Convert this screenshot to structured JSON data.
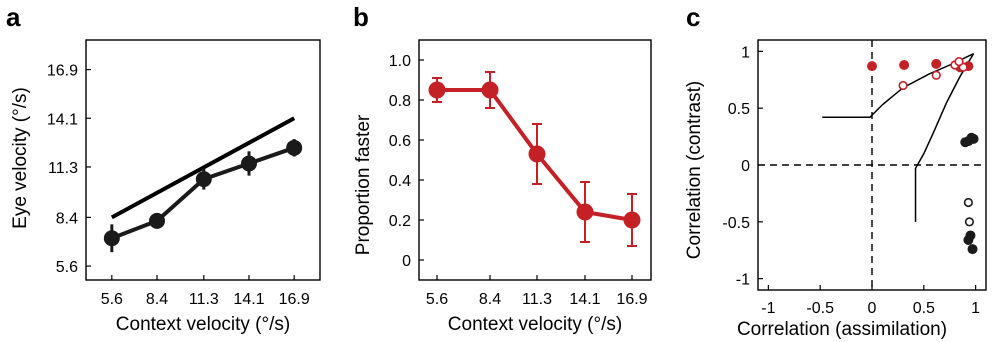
{
  "chart_data": [
    {
      "panel_label": "a",
      "type": "line",
      "xlabel": "Context velocity (°/s)",
      "ylabel": "Eye velocity (°/s)",
      "categories": [
        "5.6",
        "8.4",
        "11.3",
        "14.1",
        "16.9"
      ],
      "yticks": [
        "5.6",
        "8.4",
        "11.3",
        "14.1",
        "16.9"
      ],
      "xlim": [
        4.0,
        18.5
      ],
      "ylim": [
        4.8,
        18.6
      ],
      "series": [
        {
          "values": [
            7.2,
            8.2,
            10.6,
            11.5,
            12.4
          ],
          "errors": [
            0.8,
            0.4,
            0.6,
            0.7,
            0.5
          ],
          "color": "#1a1a1a",
          "style": "markers-line"
        },
        {
          "values": [
            8.4,
            14.1
          ],
          "x": [
            5.6,
            16.9
          ],
          "color": "#000000",
          "style": "line"
        }
      ]
    },
    {
      "panel_label": "b",
      "type": "line",
      "xlabel": "Context velocity (°/s)",
      "ylabel": "Proportion faster",
      "categories": [
        "5.6",
        "8.4",
        "11.3",
        "14.1",
        "16.9"
      ],
      "yticks": [
        "0",
        "0.2",
        "0.4",
        "0.6",
        "0.8",
        "1.0"
      ],
      "ylim": [
        -0.1,
        1.1
      ],
      "series": [
        {
          "values": [
            0.85,
            0.85,
            0.53,
            0.24,
            0.2
          ],
          "errors": [
            0.06,
            0.09,
            0.15,
            0.15,
            0.13
          ],
          "color": "#c42126",
          "style": "markers-line"
        }
      ]
    },
    {
      "panel_label": "c",
      "type": "scatter",
      "xlabel": "Correlation (assimilation)",
      "ylabel": "Correlation (contrast)",
      "xticks": [
        "-1",
        "-0.5",
        "0",
        "0.5",
        "1"
      ],
      "yticks": [
        "-1",
        "-0.5",
        "0",
        "0.5",
        "1"
      ],
      "xlim": [
        -1.1,
        1.1
      ],
      "ylim": [
        -1.1,
        1.1
      ],
      "series": [
        {
          "color": "#c42126",
          "fill": "filled",
          "points": [
            [
              0.0,
              0.87
            ],
            [
              0.31,
              0.88
            ],
            [
              0.62,
              0.89
            ],
            [
              0.85,
              0.86
            ],
            [
              0.93,
              0.87
            ]
          ]
        },
        {
          "color": "#c42126",
          "fill": "open",
          "points": [
            [
              0.3,
              0.7
            ],
            [
              0.62,
              0.79
            ],
            [
              0.8,
              0.88
            ],
            [
              0.88,
              0.86
            ],
            [
              0.84,
              0.91
            ]
          ]
        },
        {
          "color": "#1a1a1a",
          "fill": "filled",
          "points": [
            [
              0.9,
              0.2
            ],
            [
              0.93,
              0.21
            ],
            [
              0.96,
              0.24
            ],
            [
              0.98,
              0.23
            ],
            [
              0.95,
              -0.62
            ],
            [
              0.97,
              -0.74
            ],
            [
              0.93,
              -0.66
            ]
          ]
        },
        {
          "color": "#1a1a1a",
          "fill": "open",
          "points": [
            [
              0.93,
              -0.33
            ],
            [
              0.94,
              -0.5
            ]
          ]
        }
      ],
      "curves": [
        [
          [
            -0.48,
            0.42
          ],
          [
            -0.02,
            0.42
          ],
          [
            0.1,
            0.53
          ],
          [
            0.3,
            0.68
          ],
          [
            0.55,
            0.8
          ],
          [
            0.75,
            0.88
          ],
          [
            0.98,
            0.98
          ]
        ],
        [
          [
            0.42,
            -0.5
          ],
          [
            0.42,
            -0.03
          ],
          [
            0.5,
            0.1
          ],
          [
            0.6,
            0.3
          ],
          [
            0.72,
            0.55
          ],
          [
            0.85,
            0.78
          ],
          [
            0.98,
            0.98
          ]
        ]
      ]
    }
  ]
}
